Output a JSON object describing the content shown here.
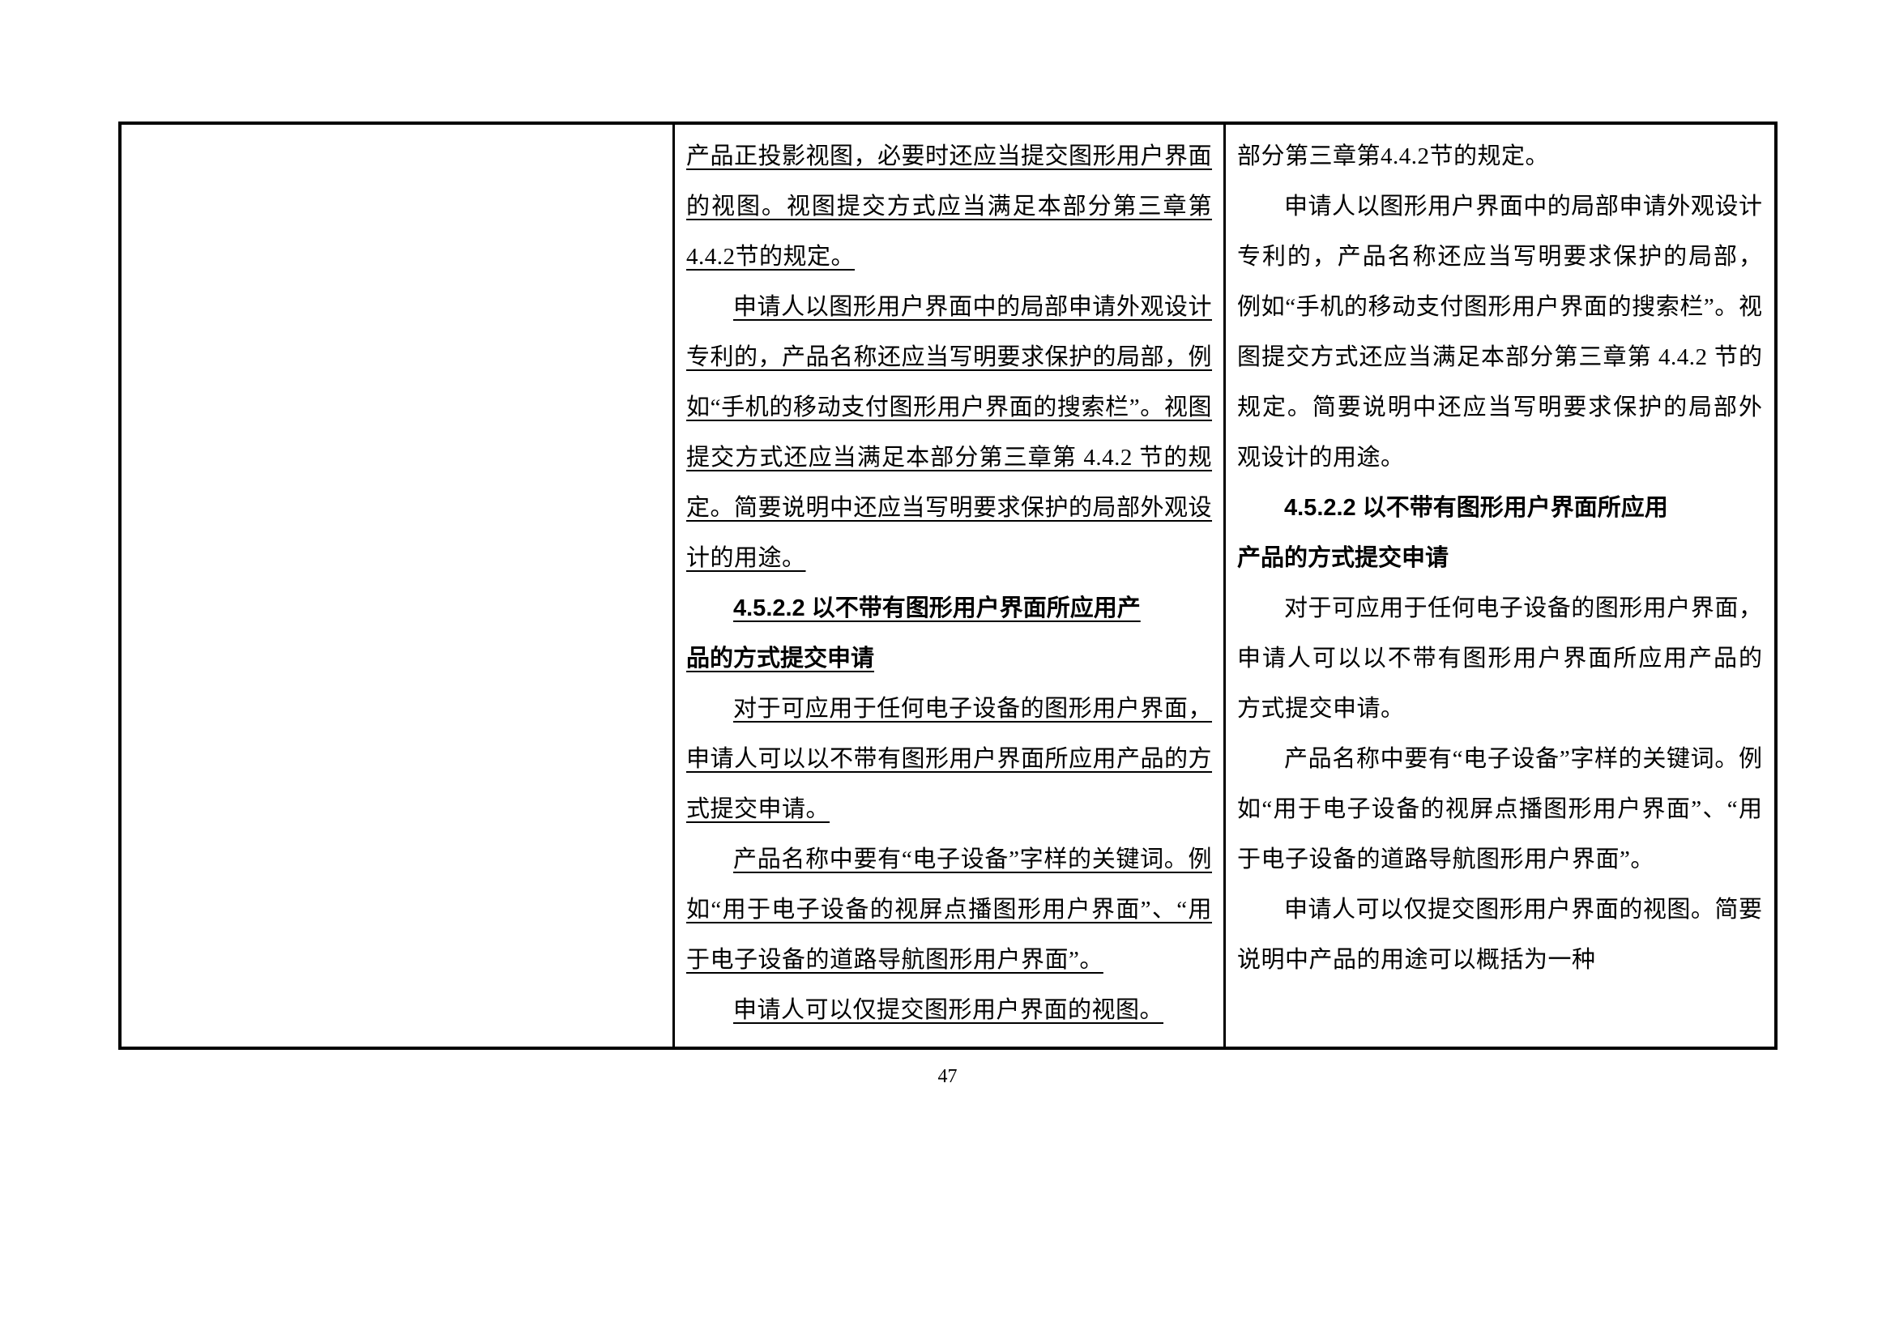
{
  "pageNumber": "47",
  "columns": {
    "mid": {
      "p1": "产品正投影视图，必要时还应当提交图形用户界面的视图。视图提交方式应当满足本部分第三章第4.4.2节的规定。",
      "p2": "申请人以图形用户界面中的局部申请外观设计专利的，产品名称还应当写明要求保护的局部，例如“手机的移动支付图形用户界面的搜索栏”。视图提交方式还应当满足本部分第三章第 4.4.2 节的规定。简要说明中还应当写明要求保护的局部外观设计的用途。",
      "h1_a": "4.5.2.2 以不带有图形用户界面所应用产",
      "h1_b": "品的方式提交申请",
      "p3": "对于可应用于任何电子设备的图形用户界面，申请人可以以不带有图形用户界面所应用产品的方式提交申请。",
      "p4": "产品名称中要有“电子设备”字样的关键词。例如“用于电子设备的视屏点播图形用户界面”、“用于电子设备的道路导航图形用户界面”。",
      "p5": "申请人可以仅提交图形用户界面的视图。"
    },
    "right": {
      "p1": "部分第三章第4.4.2节的规定。",
      "p2": "申请人以图形用户界面中的局部申请外观设计专利的，产品名称还应当写明要求保护的局部，例如“手机的移动支付图形用户界面的搜索栏”。视图提交方式还应当满足本部分第三章第 4.4.2 节的规定。简要说明中还应当写明要求保护的局部外观设计的用途。",
      "h1_a": "4.5.2.2 以不带有图形用户界面所应用",
      "h1_b": "产品的方式提交申请",
      "p3": "对于可应用于任何电子设备的图形用户界面，申请人可以以不带有图形用户界面所应用产品的方式提交申请。",
      "p4": "产品名称中要有“电子设备”字样的关键词。例如“用于电子设备的视屏点播图形用户界面”、“用于电子设备的道路导航图形用户界面”。",
      "p5": "申请人可以仅提交图形用户界面的视图。简要说明中产品的用途可以概括为一种"
    }
  },
  "style": {
    "fontSize": 29,
    "lineHeight": 62,
    "borderColor": "#000000",
    "background": "#ffffff"
  }
}
